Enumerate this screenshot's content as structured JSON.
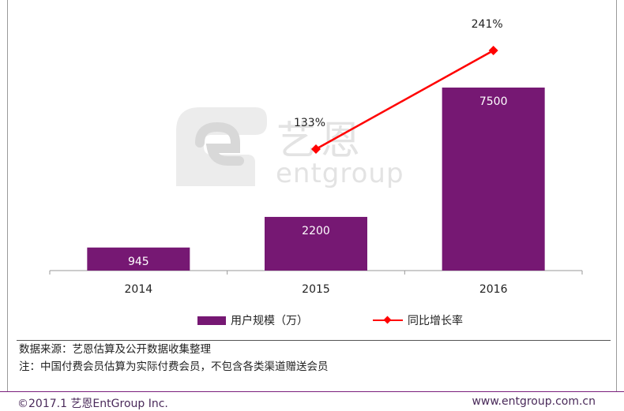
{
  "chart_data": {
    "type": "bar+line",
    "categories": [
      "2014",
      "2015",
      "2016"
    ],
    "series": [
      {
        "name": "用户规模（万）",
        "kind": "bar",
        "values": [
          945,
          2200,
          7500
        ],
        "labels": [
          "945",
          "2200",
          "7500"
        ]
      },
      {
        "name": "同比增长率",
        "kind": "line",
        "values": [
          null,
          133,
          241
        ],
        "labels": [
          "",
          "133%",
          "241%"
        ],
        "unit": "%"
      }
    ],
    "colors": {
      "bar": "#761873",
      "line": "#ff0000",
      "axis": "#9a9a9a"
    },
    "legend_position": "bottom"
  },
  "watermark": {
    "brand": "艺恩",
    "text": "entgroup"
  },
  "notes": {
    "source": "数据来源：艺恩估算及公开数据收集整理",
    "note": "注：中国付费会员估算为实际付费会员，不包含各类渠道赠送会员"
  },
  "footer": {
    "copyright": "©2017.1  艺恩EntGroup Inc.",
    "website": "www.entgroup.com.cn"
  }
}
